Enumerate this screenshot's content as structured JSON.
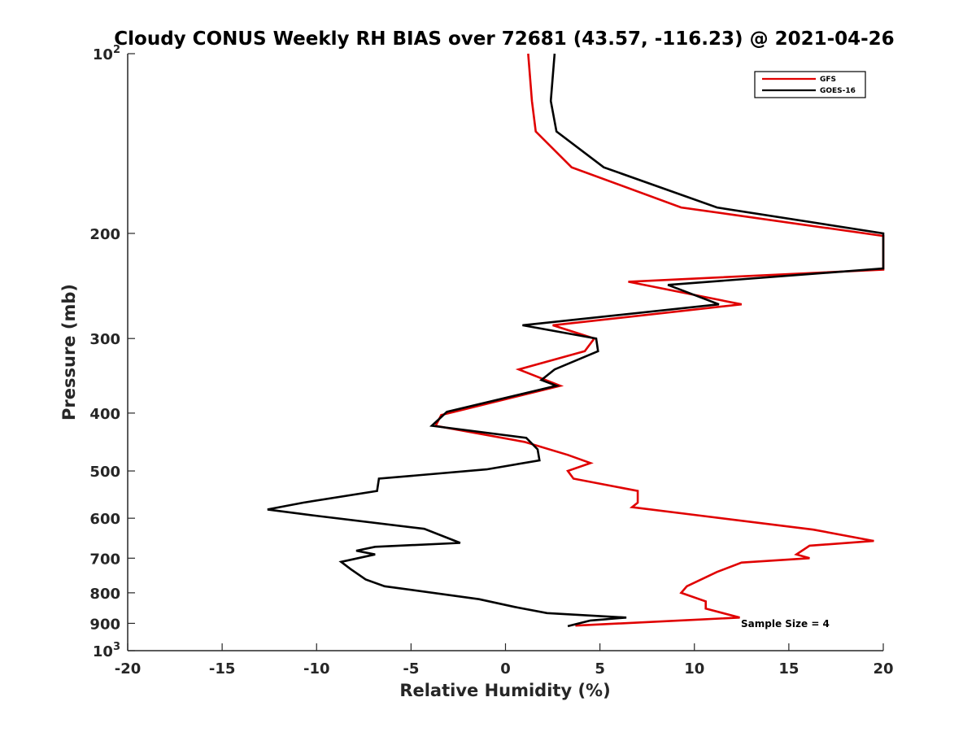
{
  "chart_data": {
    "type": "line",
    "title": "Cloudy CONUS Weekly RH BIAS over 72681 (43.57, -116.23) @ 2021-04-26",
    "xlabel": "Relative Humidity (%)",
    "ylabel": "Pressure (mb)",
    "xlim": [
      -20,
      20
    ],
    "ylim": [
      100,
      1000
    ],
    "y_scale": "log",
    "y_reversed": true,
    "grid": false,
    "legend_placement": "top-right",
    "x_ticks": [
      "-20",
      "-15",
      "-10",
      "-5",
      "0",
      "5",
      "10",
      "15",
      "20"
    ],
    "y_ticks": [
      {
        "value": 100,
        "base": "10",
        "exp": "2"
      },
      {
        "value": 200,
        "label": "200"
      },
      {
        "value": 300,
        "label": "300"
      },
      {
        "value": 400,
        "label": "400"
      },
      {
        "value": 500,
        "label": "500"
      },
      {
        "value": 600,
        "label": "600"
      },
      {
        "value": 700,
        "label": "700"
      },
      {
        "value": 800,
        "label": "800"
      },
      {
        "value": 900,
        "label": "900"
      },
      {
        "value": 1000,
        "base": "10",
        "exp": "3"
      }
    ],
    "annotation": "Sample Size = 4",
    "series": [
      {
        "name": "GFS",
        "color": "#e00000",
        "points": [
          [
            1.2,
            100
          ],
          [
            1.4,
            120
          ],
          [
            1.6,
            135
          ],
          [
            3.5,
            155
          ],
          [
            9.3,
            181
          ],
          [
            20.0,
            202
          ],
          [
            20.0,
            230
          ],
          [
            6.5,
            241
          ],
          [
            12.5,
            263
          ],
          [
            2.5,
            285
          ],
          [
            4.7,
            300
          ],
          [
            4.2,
            315
          ],
          [
            0.7,
            338
          ],
          [
            2.9,
            360
          ],
          [
            -3.4,
            403
          ],
          [
            -3.7,
            420
          ],
          [
            1.0,
            447
          ],
          [
            3.3,
            470
          ],
          [
            4.5,
            485
          ],
          [
            3.3,
            500
          ],
          [
            3.6,
            515
          ],
          [
            7.0,
            540
          ],
          [
            7.0,
            565
          ],
          [
            6.7,
            575
          ],
          [
            10.5,
            595
          ],
          [
            16.3,
            627
          ],
          [
            19.5,
            655
          ],
          [
            16.1,
            667
          ],
          [
            15.4,
            690
          ],
          [
            16.1,
            700
          ],
          [
            12.5,
            712
          ],
          [
            11.2,
            738
          ],
          [
            9.6,
            780
          ],
          [
            9.3,
            800
          ],
          [
            10.6,
            827
          ],
          [
            10.6,
            845
          ],
          [
            10.6,
            850
          ],
          [
            12.4,
            880
          ],
          [
            3.7,
            908
          ]
        ]
      },
      {
        "name": "GOES-16",
        "color": "#000000",
        "points": [
          [
            2.6,
            100
          ],
          [
            2.4,
            120
          ],
          [
            2.7,
            135
          ],
          [
            5.2,
            155
          ],
          [
            11.2,
            181
          ],
          [
            20.0,
            200
          ],
          [
            20.0,
            229
          ],
          [
            8.6,
            244
          ],
          [
            11.3,
            263
          ],
          [
            0.9,
            285
          ],
          [
            4.8,
            300
          ],
          [
            4.9,
            315
          ],
          [
            2.6,
            338
          ],
          [
            1.9,
            352
          ],
          [
            2.7,
            360
          ],
          [
            -3.1,
            398
          ],
          [
            -3.9,
            420
          ],
          [
            1.1,
            440
          ],
          [
            1.7,
            460
          ],
          [
            1.8,
            480
          ],
          [
            -1.0,
            497
          ],
          [
            -6.7,
            515
          ],
          [
            -6.8,
            540
          ],
          [
            -10.7,
            565
          ],
          [
            -12.6,
            580
          ],
          [
            -9.9,
            595
          ],
          [
            -4.3,
            625
          ],
          [
            -2.4,
            660
          ],
          [
            -6.9,
            670
          ],
          [
            -7.9,
            680
          ],
          [
            -6.9,
            690
          ],
          [
            -8.7,
            710
          ],
          [
            -8.2,
            730
          ],
          [
            -7.4,
            760
          ],
          [
            -6.4,
            780
          ],
          [
            -1.4,
            820
          ],
          [
            0.5,
            845
          ],
          [
            2.2,
            865
          ],
          [
            6.4,
            880
          ],
          [
            4.5,
            890
          ],
          [
            3.3,
            910
          ]
        ]
      }
    ]
  }
}
